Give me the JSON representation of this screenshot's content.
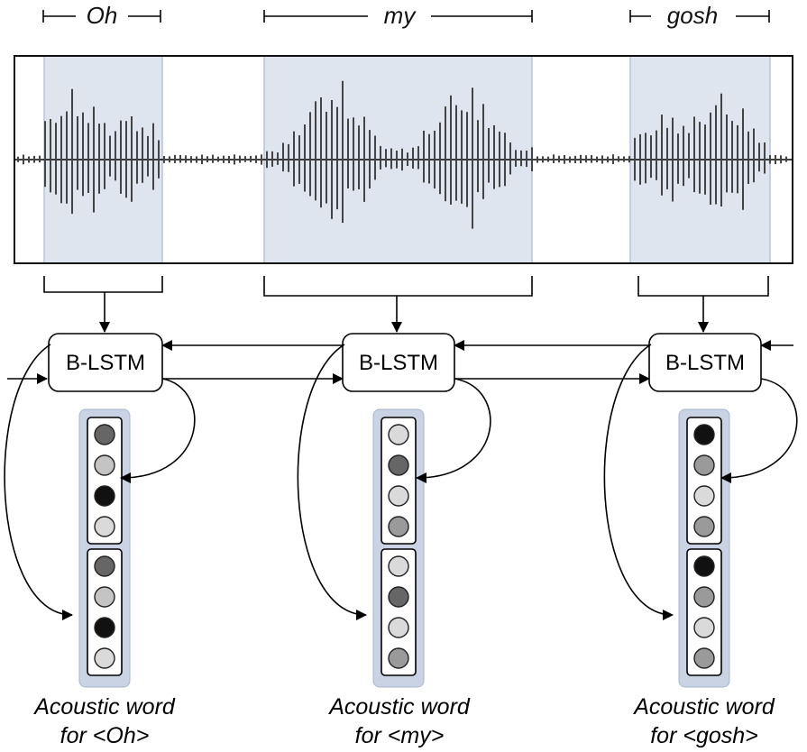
{
  "words": [
    {
      "label": "Oh",
      "caption_line1": "Acoustic word",
      "caption_line2": "for <Oh>",
      "cells_top": [
        3,
        1,
        4,
        0
      ],
      "cells_bottom": [
        3,
        1,
        4,
        0
      ]
    },
    {
      "label": "my",
      "caption_line1": "Acoustic word",
      "caption_line2": "for <my>",
      "cells_top": [
        0,
        3,
        0,
        2
      ],
      "cells_bottom": [
        0,
        3,
        0,
        2
      ]
    },
    {
      "label": "gosh",
      "caption_line1": "Acoustic word",
      "caption_line2": "for <gosh>",
      "cells_top": [
        4,
        2,
        0,
        2
      ],
      "cells_bottom": [
        4,
        2,
        0,
        2
      ]
    }
  ],
  "blstm_label": "B-LSTM",
  "colors": {
    "highlight_fill": "#dfe5ee",
    "highlight_stroke": "#b7c4d8",
    "waveform": "#444444",
    "vector_shade": "#c9d3e3",
    "cell_shades": [
      "#dadada",
      "#c4c4c4",
      "#9a9a9a",
      "#666666",
      "#111111"
    ]
  }
}
